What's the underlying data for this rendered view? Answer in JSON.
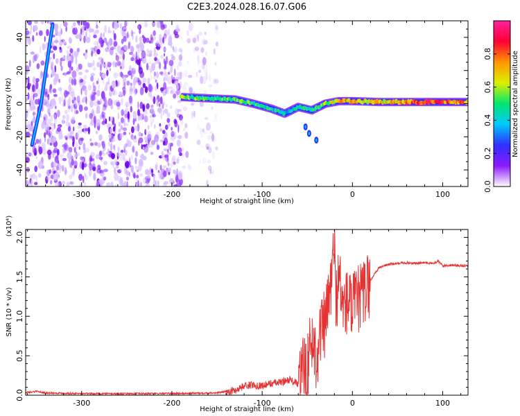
{
  "title": "C2E3.2024.028.16.07.G06",
  "chart_data": [
    {
      "type": "heatmap",
      "xlabel": "Height of straight line (km)",
      "ylabel": "Frequency (Hz)",
      "xlim": [
        -362,
        128
      ],
      "ylim": [
        -50,
        50
      ],
      "x_ticks": [
        -300,
        -200,
        -100,
        0,
        100
      ],
      "x_tick_labels": [
        "-300",
        "-200",
        "-100",
        "0",
        "100"
      ],
      "y_ticks": [
        -40,
        -20,
        0,
        20,
        40
      ],
      "y_tick_labels": [
        "-40",
        "-20",
        "0",
        "20",
        "40"
      ],
      "colorbar": {
        "label": "Normalized spectral amplitude",
        "range": [
          0,
          1
        ],
        "ticks": [
          0.0,
          0.2,
          0.4,
          0.6,
          0.8
        ],
        "tick_labels": [
          "0.0",
          "0.2",
          "0.4",
          "0.6",
          "0.8"
        ],
        "colormap": [
          "#ffffff",
          "#8c1aff",
          "#2f2fff",
          "#00c8ff",
          "#00e66e",
          "#dcf000",
          "#ff9600",
          "#ff0033",
          "#ff1f9e"
        ]
      },
      "noise_region_x": [
        -362,
        -190
      ],
      "signal_track": [
        {
          "x": -190,
          "y": 4.0,
          "a": 0.55
        },
        {
          "x": -170,
          "y": 3.5,
          "a": 0.5
        },
        {
          "x": -150,
          "y": 3.0,
          "a": 0.5
        },
        {
          "x": -130,
          "y": 2.5,
          "a": 0.55
        },
        {
          "x": -110,
          "y": 0.0,
          "a": 0.5
        },
        {
          "x": -90,
          "y": -3.0,
          "a": 0.45
        },
        {
          "x": -75,
          "y": -6.0,
          "a": 0.4
        },
        {
          "x": -60,
          "y": -2.0,
          "a": 0.45
        },
        {
          "x": -45,
          "y": -4.0,
          "a": 0.4
        },
        {
          "x": -30,
          "y": 0.0,
          "a": 0.55
        },
        {
          "x": -15,
          "y": 1.5,
          "a": 0.7
        },
        {
          "x": 0,
          "y": 1.5,
          "a": 0.7
        },
        {
          "x": 30,
          "y": 1.0,
          "a": 0.65
        },
        {
          "x": 60,
          "y": 1.0,
          "a": 0.75
        },
        {
          "x": 90,
          "y": 1.0,
          "a": 0.85
        },
        {
          "x": 128,
          "y": 1.0,
          "a": 0.7
        }
      ],
      "side_branch": [
        {
          "x": -52,
          "y": -14
        },
        {
          "x": -48,
          "y": -18
        },
        {
          "x": -40,
          "y": -22
        }
      ],
      "diagonal_streak": [
        {
          "x": -355,
          "y": -25
        },
        {
          "x": -345,
          "y": 0
        },
        {
          "x": -337,
          "y": 30
        },
        {
          "x": -332,
          "y": 48
        }
      ]
    },
    {
      "type": "line",
      "xlabel": "Height of straight line (km)",
      "ylabel": "SNR (10 * v/v)",
      "y_multiplier_label": "(x10⁴)",
      "xlim": [
        -362,
        128
      ],
      "ylim": [
        0,
        2.1
      ],
      "x_ticks": [
        -300,
        -200,
        -100,
        0,
        100
      ],
      "x_tick_labels": [
        "-300",
        "-200",
        "-100",
        "0",
        "100"
      ],
      "y_ticks": [
        0.0,
        0.5,
        1.0,
        1.5,
        2.0
      ],
      "y_tick_labels": [
        "0.0",
        "0.5",
        "1.0",
        "1.5",
        "2.0"
      ],
      "line_color": "#e53232",
      "series": [
        {
          "x": [
            -362,
            -350,
            -340,
            -300,
            -250,
            -200,
            -150,
            -130,
            -120,
            -110,
            -100,
            -90,
            -80,
            -70,
            -60,
            -55,
            -50,
            -45,
            -40,
            -35,
            -30,
            -25,
            -22,
            -20,
            -18,
            -15,
            -10,
            -5,
            0,
            5,
            10,
            15,
            20,
            25,
            30,
            40,
            50,
            60,
            70,
            80,
            90,
            95,
            100,
            110,
            120,
            128
          ],
          "y": [
            0.03,
            0.05,
            0.03,
            0.02,
            0.02,
            0.02,
            0.03,
            0.06,
            0.12,
            0.13,
            0.12,
            0.15,
            0.16,
            0.2,
            0.14,
            0.3,
            0.4,
            0.7,
            0.5,
            0.8,
            0.9,
            1.3,
            1.6,
            1.9,
            1.2,
            1.5,
            1.1,
            1.2,
            1.1,
            1.2,
            1.25,
            1.35,
            1.45,
            1.55,
            1.62,
            1.66,
            1.67,
            1.68,
            1.67,
            1.68,
            1.67,
            1.7,
            1.64,
            1.65,
            1.64,
            1.64
          ]
        }
      ]
    }
  ]
}
